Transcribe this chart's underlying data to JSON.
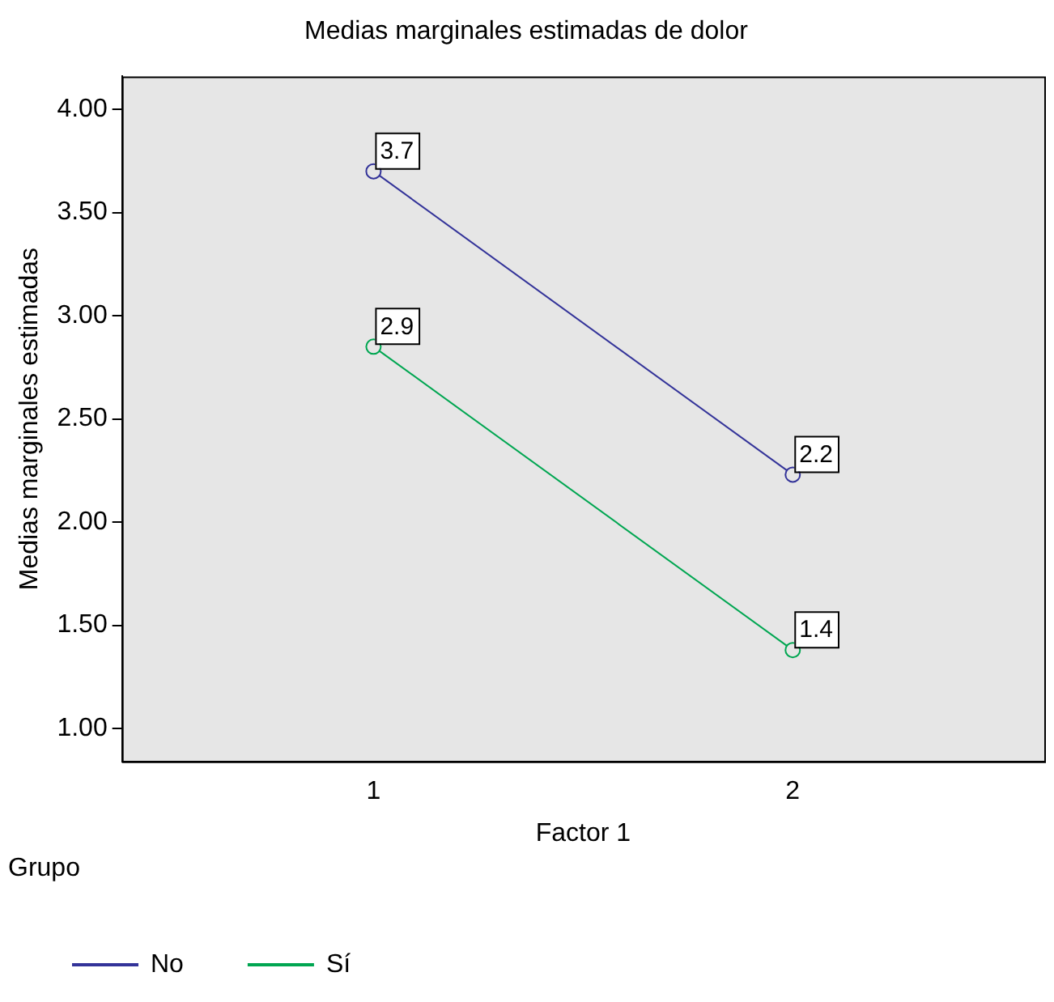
{
  "chart_data": {
    "type": "line",
    "title": "Medias marginales estimadas de dolor",
    "xlabel": "Factor 1",
    "ylabel": "Medias marginales estimadas",
    "legend_title": "Grupo",
    "x": [
      1,
      2
    ],
    "xlim": [
      0.4,
      2.6
    ],
    "xticks": [
      1,
      2
    ],
    "ylim": [
      0.84,
      4.16
    ],
    "yticks": [
      {
        "value": 1,
        "label": "1.00"
      },
      {
        "value": 1.5,
        "label": "1.50"
      },
      {
        "value": 2,
        "label": "2.00"
      },
      {
        "value": 2.5,
        "label": "2.50"
      },
      {
        "value": 3,
        "label": "3.00"
      },
      {
        "value": 3.5,
        "label": "3.50"
      },
      {
        "value": 4,
        "label": "4.00"
      }
    ],
    "series": [
      {
        "name": "No",
        "color": "#333399",
        "values": [
          3.7,
          2.23
        ],
        "value_labels": [
          "3.7",
          "2.2"
        ]
      },
      {
        "name": "Sí",
        "color": "#00a651",
        "values": [
          2.85,
          1.38
        ],
        "value_labels": [
          "2.9",
          "1.4"
        ]
      }
    ],
    "marker": "circle",
    "line_style": "solid",
    "grid": false,
    "legend": "bottom"
  }
}
